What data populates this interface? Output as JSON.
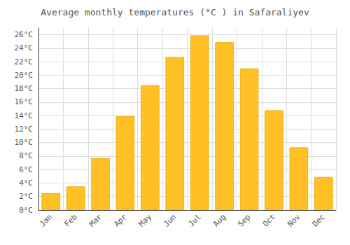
{
  "chart_data": {
    "type": "bar",
    "title": "Average monthly temperatures (°C ) in Safaraliyev",
    "categories": [
      "Jan",
      "Feb",
      "Mar",
      "Apr",
      "May",
      "Jun",
      "Jul",
      "Aug",
      "Sep",
      "Oct",
      "Nov",
      "Dec"
    ],
    "values": [
      2.5,
      3.5,
      7.7,
      13.9,
      18.5,
      22.7,
      25.9,
      24.9,
      21.0,
      14.8,
      9.3,
      4.9
    ],
    "color": "#FFC125",
    "ylim": [
      0,
      27
    ],
    "yticks": [
      {
        "value": 0,
        "label": "0°C"
      },
      {
        "value": 2,
        "label": "2°C"
      },
      {
        "value": 4,
        "label": "4°C"
      },
      {
        "value": 6,
        "label": "6°C"
      },
      {
        "value": 8,
        "label": "8°C"
      },
      {
        "value": 10,
        "label": "10°C"
      },
      {
        "value": 12,
        "label": "12°C"
      },
      {
        "value": 14,
        "label": "14°C"
      },
      {
        "value": 16,
        "label": "16°C"
      },
      {
        "value": 18,
        "label": "18°C"
      },
      {
        "value": 20,
        "label": "20°C"
      },
      {
        "value": 22,
        "label": "22°C"
      },
      {
        "value": 24,
        "label": "24°C"
      },
      {
        "value": 26,
        "label": "26°C"
      }
    ],
    "grid": true
  }
}
